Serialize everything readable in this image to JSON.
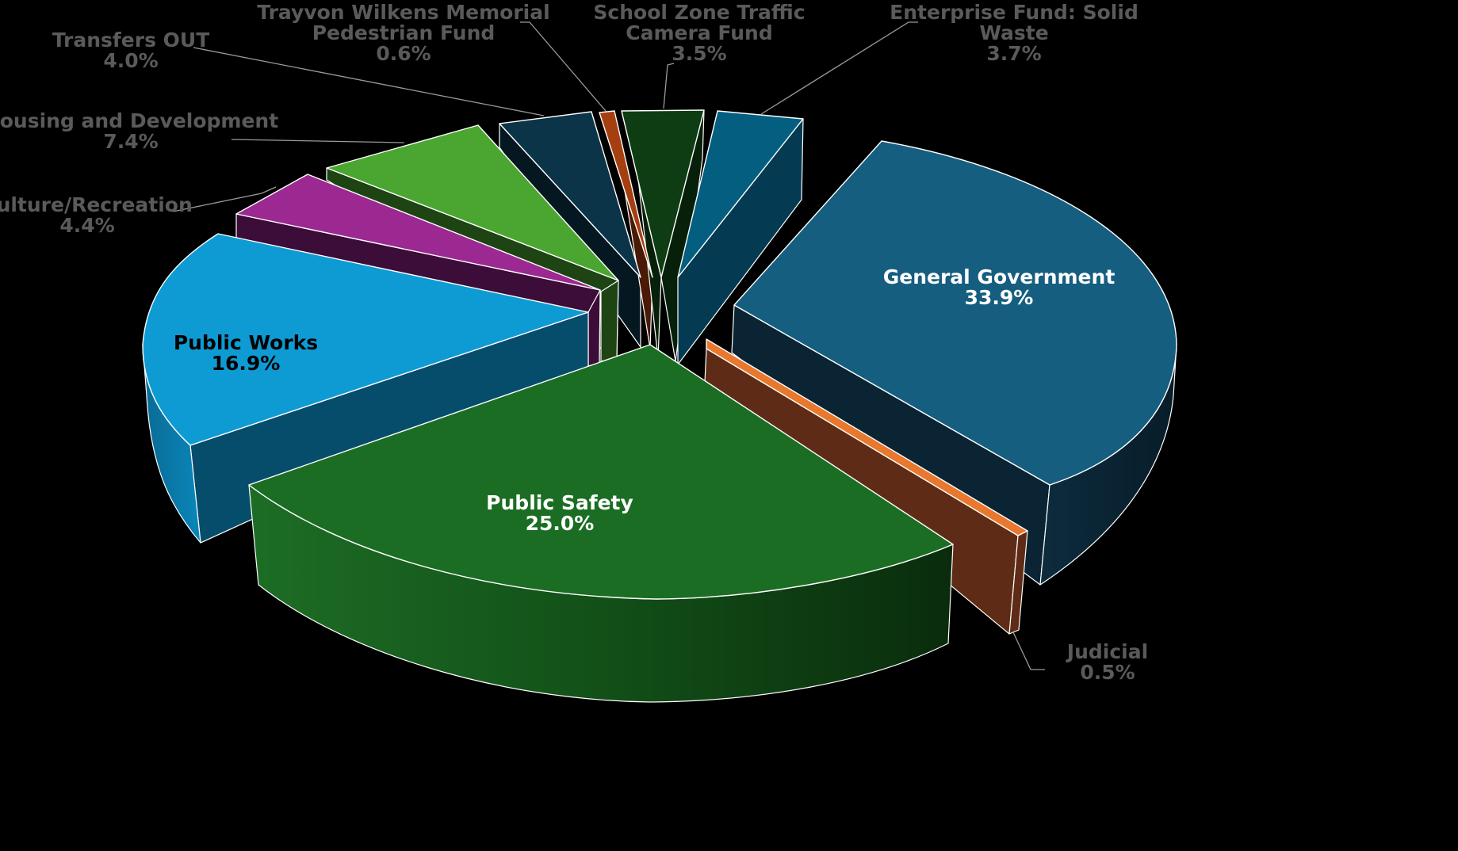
{
  "chart_data": {
    "type": "pie",
    "style": "3d-exploded",
    "title": "",
    "slices": [
      {
        "name": "General Government",
        "label_lines": [
          "General Government"
        ],
        "value": 33.9,
        "pct_text": "33.9%",
        "color": "#155e7f",
        "side_color": "#0a2434",
        "text_color": "#ffffff",
        "label_pos": "inside"
      },
      {
        "name": "Judicial",
        "label_lines": [
          "Judicial"
        ],
        "value": 0.5,
        "pct_text": "0.5%",
        "color": "#e8782e",
        "side_color": "#5e2c16",
        "text_color": "#5a5a5a",
        "label_pos": "outside"
      },
      {
        "name": "Public Safety",
        "label_lines": [
          "Public Safety"
        ],
        "value": 25.0,
        "pct_text": "25.0%",
        "color": "#1b6d24",
        "side_color": "#0d3a10",
        "text_color": "#ffffff",
        "label_pos": "inside"
      },
      {
        "name": "Public Works",
        "label_lines": [
          "Public Works"
        ],
        "value": 16.9,
        "pct_text": "16.9%",
        "color": "#0e9bd4",
        "side_color": "#064d6c",
        "text_color": "#000000",
        "label_pos": "inside"
      },
      {
        "name": "Culture/Recreation",
        "label_lines": [
          "Culture/Recreation"
        ],
        "value": 4.4,
        "pct_text": "4.4%",
        "color": "#9c2891",
        "side_color": "#3c0d38",
        "text_color": "#5a5a5a",
        "label_pos": "outside"
      },
      {
        "name": "Housing and Development",
        "label_lines": [
          "Housing and Development"
        ],
        "value": 7.4,
        "pct_text": "7.4%",
        "color": "#4aa630",
        "side_color": "#1e4414",
        "text_color": "#5a5a5a",
        "label_pos": "outside"
      },
      {
        "name": "Transfers OUT",
        "label_lines": [
          "Transfers OUT"
        ],
        "value": 4.0,
        "pct_text": "4.0%",
        "color": "#0b3448",
        "side_color": "#051822",
        "text_color": "#5a5a5a",
        "label_pos": "outside"
      },
      {
        "name": "Trayvon Wilkens Memorial Pedestrian Fund",
        "label_lines": [
          "Trayvon Wilkens Memorial",
          "Pedestrian Fund"
        ],
        "value": 0.6,
        "pct_text": "0.6%",
        "color": "#a63f10",
        "side_color": "#4a1a06",
        "text_color": "#5a5a5a",
        "label_pos": "outside"
      },
      {
        "name": "School Zone Traffic Camera Fund",
        "label_lines": [
          "School Zone Traffic",
          "Camera Fund"
        ],
        "value": 3.5,
        "pct_text": "3.5%",
        "color": "#0e3d13",
        "side_color": "#072009",
        "text_color": "#5a5a5a",
        "label_pos": "outside"
      },
      {
        "name": "Enterprise Fund: Solid Waste",
        "label_lines": [
          "Enterprise Fund: Solid",
          "Waste"
        ],
        "value": 3.7,
        "pct_text": "3.7%",
        "color": "#045e80",
        "side_color": "#043a52",
        "text_color": "#5a5a5a",
        "label_pos": "outside"
      }
    ]
  }
}
